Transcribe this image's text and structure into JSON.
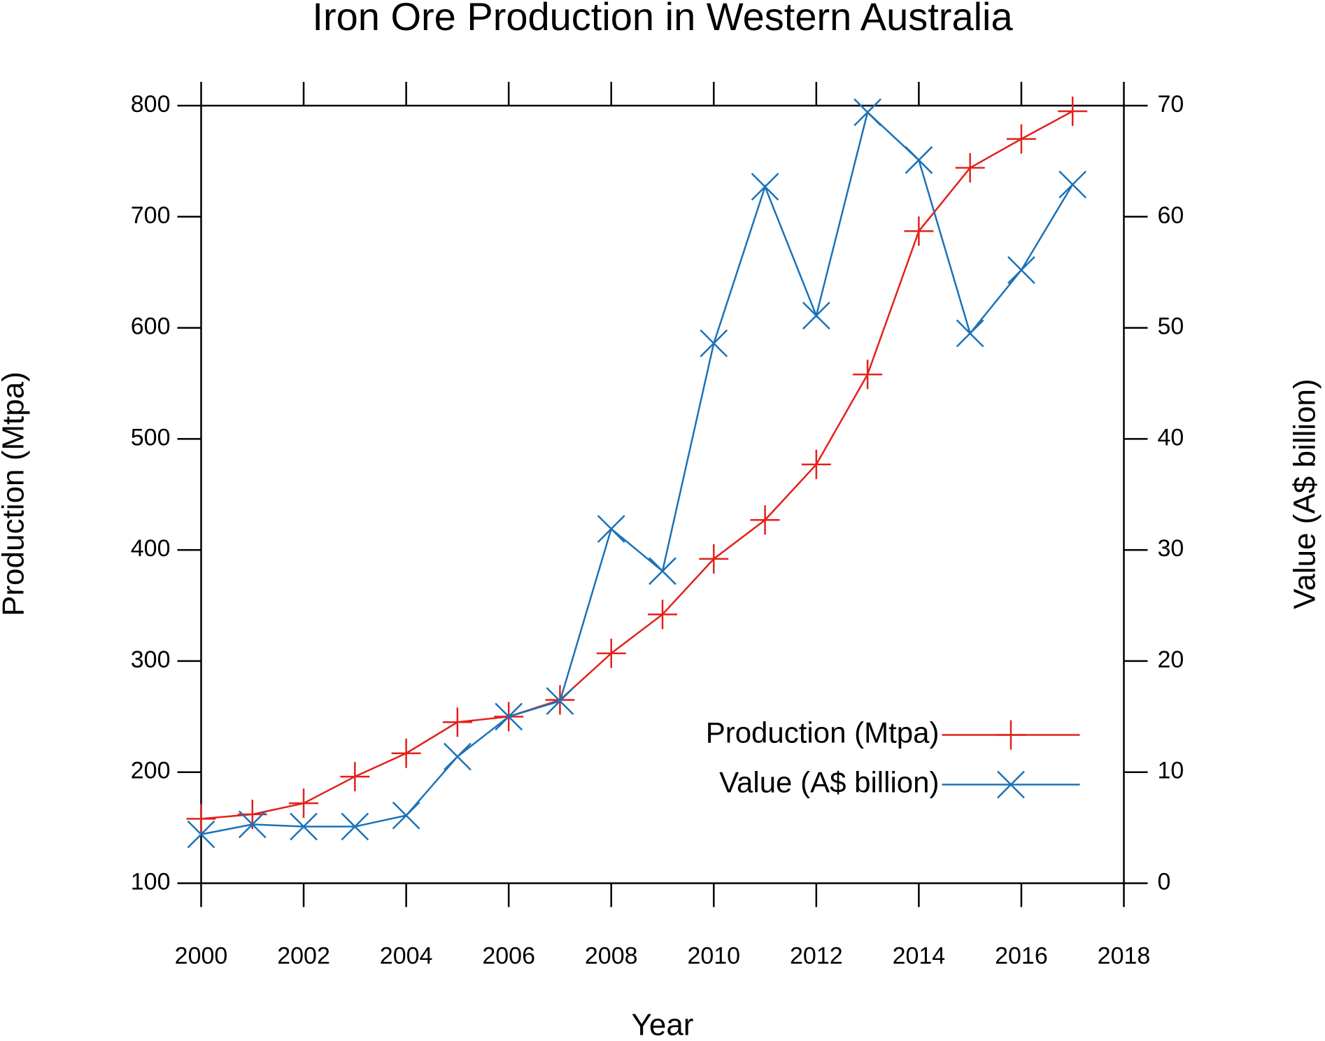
{
  "chart_data": {
    "type": "line",
    "title": "Iron Ore Production in Western Australia",
    "x_label": "Year",
    "y_label": "Production (Mtpa)",
    "y2_label": "Value (A$ billion)",
    "x": [
      2000,
      2001,
      2002,
      2003,
      2004,
      2005,
      2006,
      2007,
      2008,
      2009,
      2010,
      2011,
      2012,
      2013,
      2014,
      2015,
      2016,
      2017
    ],
    "series": [
      {
        "name": "Production (Mtpa)",
        "color": "#e3211c",
        "marker": "plus",
        "values": [
          158,
          162,
          172,
          196,
          217,
          245,
          250,
          265,
          307,
          342,
          392,
          427,
          477,
          558,
          687,
          744,
          770,
          795
        ]
      },
      {
        "name": "Value (A$ billion)",
        "color": "#1a72b8",
        "marker": "x",
        "axis": "y2",
        "values": [
          4.4,
          5.3,
          5.1,
          5.1,
          6.1,
          11.4,
          15.0,
          16.4,
          31.9,
          28.1,
          48.6,
          62.7,
          51.1,
          69.4,
          65.1,
          49.5,
          55.2,
          62.9
        ]
      }
    ],
    "xlim": [
      2000,
      2018
    ],
    "xticks": [
      2000,
      2002,
      2004,
      2006,
      2008,
      2010,
      2012,
      2014,
      2016,
      2018
    ],
    "ylim": [
      100,
      800
    ],
    "yticks": [
      100,
      200,
      300,
      400,
      500,
      600,
      700,
      800
    ],
    "y2lim": [
      0,
      70
    ],
    "y2ticks": [
      0,
      10,
      20,
      30,
      40,
      50,
      60,
      70
    ],
    "grid": false,
    "legend": "bottom right"
  }
}
